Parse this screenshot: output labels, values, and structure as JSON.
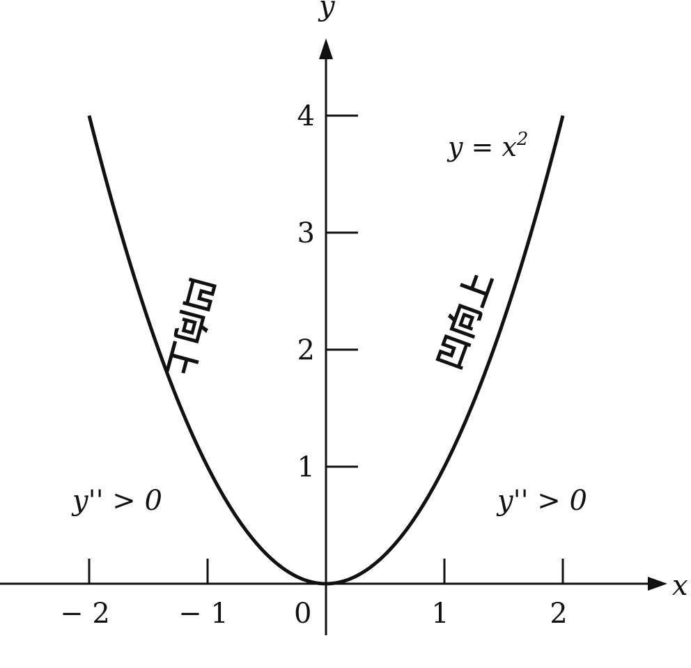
{
  "chart_data": {
    "type": "line",
    "xlabel": "x",
    "ylabel": "y",
    "xlim": [
      -2.8,
      3.0
    ],
    "ylim": [
      -0.45,
      4.9
    ],
    "x_ticks": [
      {
        "value": -2,
        "label": "− 2"
      },
      {
        "value": -1,
        "label": "− 1"
      },
      {
        "value": 1,
        "label": "1"
      },
      {
        "value": 2,
        "label": "2"
      }
    ],
    "origin_label": "0",
    "y_ticks": [
      {
        "value": 1,
        "label": "1"
      },
      {
        "value": 2,
        "label": "2"
      },
      {
        "value": 3,
        "label": "3"
      },
      {
        "value": 4,
        "label": "4"
      }
    ],
    "grid": false,
    "series": [
      {
        "name": "y = x²",
        "x": [
          -2,
          -1.5,
          -1,
          -0.5,
          0,
          0.5,
          1,
          1.5,
          2
        ],
        "y": [
          4,
          2.25,
          1,
          0.25,
          0,
          0.25,
          1,
          2.25,
          4
        ]
      }
    ],
    "equation_label": {
      "base": "y = x",
      "exponent": "2"
    },
    "annotations": {
      "left_side_text": "凹向上",
      "right_side_text": "凹向上",
      "left_condition": "y'' > 0",
      "right_condition": "y'' > 0"
    },
    "colors": {
      "ink": "#111111",
      "background": "#ffffff"
    }
  }
}
